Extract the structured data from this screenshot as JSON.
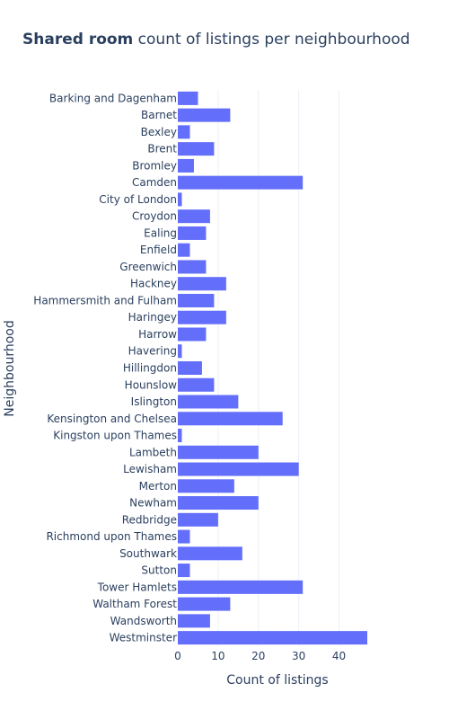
{
  "chart_data": {
    "type": "bar",
    "orientation": "horizontal",
    "title_bold": "Shared room",
    "title_rest": " count of listings per neighbourhood",
    "xlabel": "Count of listings",
    "ylabel": "Neighbourhood",
    "xlim": [
      0,
      47
    ],
    "xticks": [
      0,
      10,
      20,
      30,
      40
    ],
    "grid": true,
    "bar_color": "#636efa",
    "categories": [
      "Barking and Dagenham",
      "Barnet",
      "Bexley",
      "Brent",
      "Bromley",
      "Camden",
      "City of London",
      "Croydon",
      "Ealing",
      "Enfield",
      "Greenwich",
      "Hackney",
      "Hammersmith and Fulham",
      "Haringey",
      "Harrow",
      "Havering",
      "Hillingdon",
      "Hounslow",
      "Islington",
      "Kensington and Chelsea",
      "Kingston upon Thames",
      "Lambeth",
      "Lewisham",
      "Merton",
      "Newham",
      "Redbridge",
      "Richmond upon Thames",
      "Southwark",
      "Sutton",
      "Tower Hamlets",
      "Waltham Forest",
      "Wandsworth",
      "Westminster"
    ],
    "values": [
      5,
      13,
      3,
      9,
      4,
      31,
      1,
      8,
      7,
      3,
      7,
      12,
      9,
      12,
      7,
      1,
      6,
      9,
      15,
      26,
      1,
      20,
      30,
      14,
      20,
      10,
      3,
      16,
      3,
      31,
      13,
      8,
      47
    ]
  }
}
